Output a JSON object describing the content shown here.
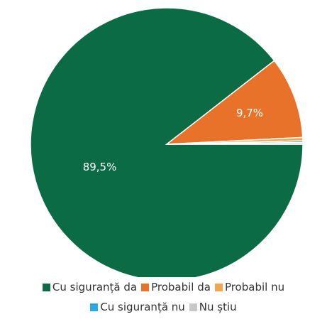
{
  "chart_data": {
    "type": "pie",
    "categories": [
      "Cu siguranță da",
      "Probabil da",
      "Probabil nu",
      "Cu siguranță nu",
      "Nu știu"
    ],
    "values": [
      89.5,
      9.7,
      0.4,
      0.2,
      0.2
    ],
    "value_labels": [
      "89,5%",
      "9,7%",
      null,
      null,
      null
    ],
    "colors": [
      "#0b6b45",
      "#e8722a",
      "#f2a54c",
      "#2aa8e0",
      "#c8c8c8"
    ],
    "start_angle": 90,
    "legend": "bottom"
  }
}
